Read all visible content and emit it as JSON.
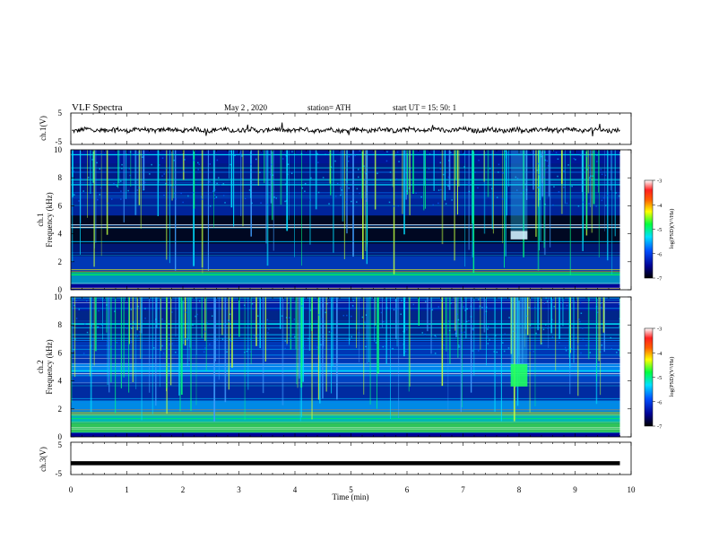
{
  "header": {
    "title": "VLF  Spectra",
    "date": "May 2  , 2020",
    "station": "station= ATH",
    "start": "start  UT  =    15: 50: 1"
  },
  "chart_data": [
    {
      "type": "line",
      "panel": "ch1-waveform",
      "ylabel": "ch.1(V)",
      "ylim": [
        -5,
        5
      ],
      "yticks": [
        5,
        -5
      ],
      "xlim": [
        0,
        10
      ],
      "description_level": -0.4,
      "color": "#000000"
    },
    {
      "type": "heatmap",
      "panel": "ch1-spectrogram",
      "ylabel": "ch.1\nFrequency (kHz)",
      "ylabel_lines": [
        "ch.1",
        "Frequency  (kHz)"
      ],
      "ylim": [
        0,
        10
      ],
      "yticks": [
        0,
        2,
        4,
        6,
        8,
        10
      ],
      "xlim": [
        0,
        10
      ],
      "data_extent_min": 9.8,
      "burst": {
        "t_start": 7.85,
        "t_end": 8.15,
        "f_low": 3.6,
        "f_high": 4.2
      },
      "colorbar": {
        "label": "log(PSD)(V²/Hz)",
        "ticks": [
          -3,
          -4,
          -5,
          -6,
          -7
        ],
        "range": [
          -7,
          -3
        ]
      }
    },
    {
      "type": "heatmap",
      "panel": "ch2-spectrogram",
      "ylabel_lines": [
        "ch.2",
        "Frequency  (kHz)"
      ],
      "ylim": [
        0,
        10
      ],
      "yticks": [
        0,
        2,
        4,
        6,
        8,
        10
      ],
      "xlim": [
        0,
        10
      ],
      "data_extent_min": 9.8,
      "burst": {
        "t_start": 7.85,
        "t_end": 8.15,
        "f_low": 3.6,
        "f_high": 5.2
      },
      "colorbar": {
        "label": "log(PSD)(V²/Hz)",
        "ticks": [
          -3,
          -4,
          -5,
          -6,
          -7
        ],
        "range": [
          -7,
          -3
        ]
      }
    },
    {
      "type": "line",
      "panel": "ch3-waveform",
      "ylabel": "ch.3(V)",
      "ylim": [
        -5,
        5
      ],
      "yticks": [
        5,
        0,
        -5
      ],
      "ytick_labels": [
        "5",
        "",
        "-5"
      ],
      "xlim": [
        0,
        10
      ],
      "level": -1.5,
      "color": "#000000"
    }
  ],
  "xaxis": {
    "label": "Time  (min)",
    "ticks": [
      0,
      1,
      2,
      3,
      4,
      5,
      6,
      7,
      8,
      9,
      10
    ],
    "tick_labels": [
      "0",
      "1",
      "2",
      "3",
      "4",
      "5",
      "6",
      "7",
      "8",
      "9",
      "10"
    ]
  },
  "palette": {
    "background": "#000040",
    "colormap": [
      "#000000",
      "#000080",
      "#0000ff",
      "#00a0ff",
      "#00ffff",
      "#00ff00",
      "#ffff00",
      "#ff8000",
      "#ff0000",
      "#ffffff"
    ]
  }
}
